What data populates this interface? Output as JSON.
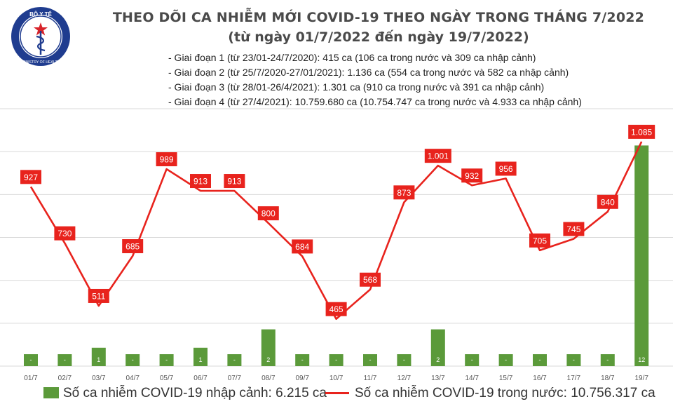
{
  "header": {
    "logo_text_top": "BỘ Y TẾ",
    "logo_text_bottom": "MINISTRY OF HEALTH",
    "title": "THEO DÕI CA NHIỄM MỚI COVID-19 THEO NGÀY TRONG THÁNG 7/2022",
    "subtitle": "(từ ngày 01/7/2022 đến ngày 19/7/2022)",
    "periods": [
      "- Giai đoạn 1 (từ 23/01-24/7/2020): 415 ca (106 ca trong nước và 309 ca nhập cảnh)",
      "- Giai đoạn 2 (từ 25/7/2020-27/01/2021): 1.136 ca (554 ca trong nước và 582 ca nhập cảnh)",
      "- Giai đoạn 3 (từ 28/01-26/4/2021): 1.301 ca (910 ca trong nước và 391 ca nhập cảnh)",
      "- Giai đoạn 4 (từ 27/4/2021): 10.759.680 ca (10.754.747 ca trong nước và 4.933 ca nhập cảnh)"
    ]
  },
  "legend": {
    "bar_label": "Số ca nhiễm COVID-19 nhập cảnh: 6.215 ca",
    "line_label": "Số ca nhiễm COVID-19 trong nước: 10.756.317 ca"
  },
  "colors": {
    "bar": "#5b9a3a",
    "line": "#e8231d",
    "label_box": "#e8231d",
    "grid": "#d9d9d9"
  },
  "chart_data": {
    "type": "bar+line",
    "categories": [
      "01/7",
      "02/7",
      "03/7",
      "04/7",
      "05/7",
      "06/7",
      "07/7",
      "08/7",
      "09/7",
      "10/7",
      "11/7",
      "12/7",
      "13/7",
      "14/7",
      "15/7",
      "16/7",
      "17/7",
      "18/7",
      "19/7"
    ],
    "series": [
      {
        "name": "Số ca nhiễm COVID-19 trong nước",
        "type": "line",
        "values": [
          927,
          730,
          511,
          685,
          989,
          913,
          913,
          800,
          684,
          465,
          568,
          873,
          1001,
          932,
          956,
          705,
          745,
          840,
          1085
        ],
        "labels": [
          "927",
          "730",
          "511",
          "685",
          "989",
          "913",
          "913",
          "800",
          "684",
          "465",
          "568",
          "873",
          "1.001",
          "932",
          "956",
          "705",
          "745",
          "840",
          "1.085"
        ]
      },
      {
        "name": "Số ca nhiễm COVID-19 nhập cảnh",
        "type": "bar",
        "values": [
          0,
          0,
          1,
          0,
          0,
          1,
          0,
          2,
          0,
          0,
          0,
          0,
          2,
          0,
          0,
          0,
          0,
          0,
          12
        ],
        "labels": [
          "-",
          "-",
          "1",
          "-",
          "-",
          "1",
          "-",
          "2",
          "-",
          "-",
          "-",
          "-",
          "2",
          "-",
          "-",
          "-",
          "-",
          "-",
          "12"
        ]
      }
    ],
    "left_axis_range": [
      300,
      1200
    ],
    "right_axis_range": [
      0,
      14
    ],
    "grid": true,
    "legend_position": "bottom"
  }
}
